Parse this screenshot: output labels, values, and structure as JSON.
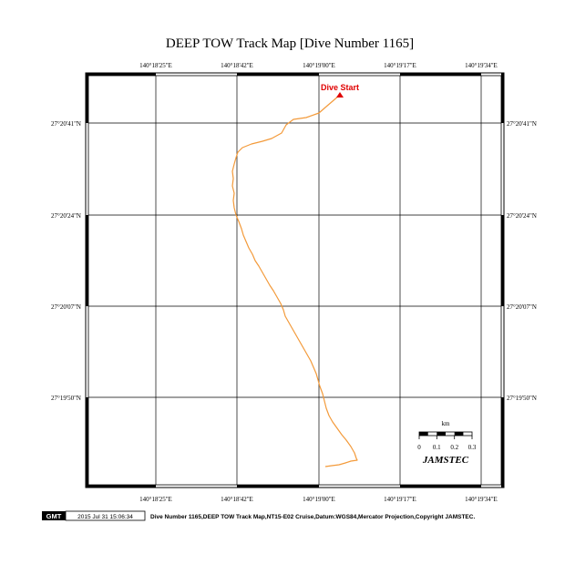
{
  "title": "DEEP TOW Track Map [Dive Number 1165]",
  "lon_ticks": [
    "140°18'25\"E",
    "140°18'42\"E",
    "140°19'00\"E",
    "140°19'17\"E",
    "140°19'34\"E"
  ],
  "lat_ticks": [
    "27°20'41\"N",
    "27°20'24\"N",
    "27°20'07\"N",
    "27°19'50\"N"
  ],
  "start_label": "Dive Start",
  "scale": {
    "unit": "km",
    "labels": [
      "0",
      "0.1",
      "0.2",
      "0.3"
    ]
  },
  "brand": "JAMSTEC",
  "footer": {
    "logo": "GMT",
    "timestamp": "2015 Jul 31 15:06:34",
    "caption": "Dive Number 1165,DEEP TOW Track Map,NT15-E02 Cruise,Datum:WGS84,Mercator Projection,Copyright JAMSTEC."
  },
  "colors": {
    "track": "#f39a3a",
    "start_marker": "#e00000",
    "grid": "#000000"
  }
}
